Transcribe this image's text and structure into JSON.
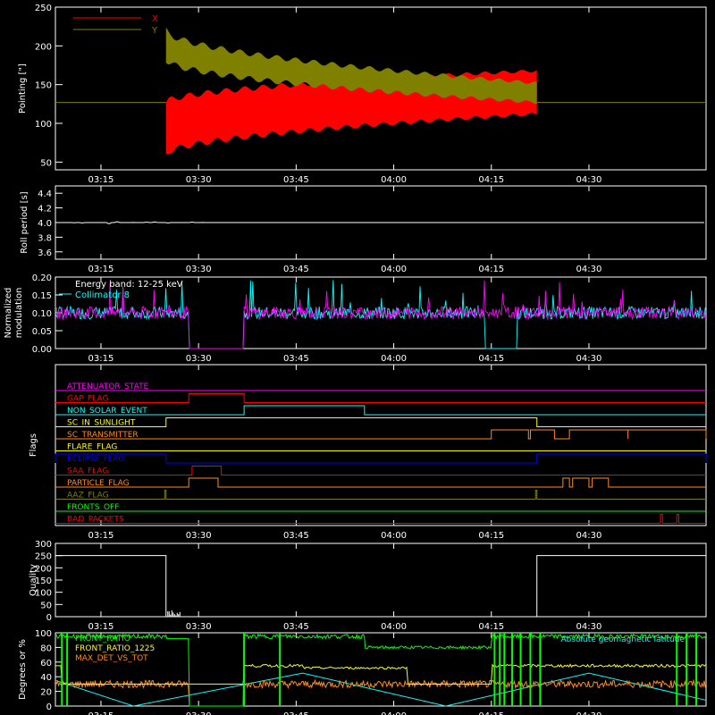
{
  "colors": {
    "axis": "#ffffff",
    "x_series": "#ff0000",
    "y_series": "#808000",
    "magenta": "#ff00ff",
    "cyan": "#00ffff",
    "yellow": "#ffff00",
    "orange": "#ff8c1a",
    "blue": "#0000ff",
    "red": "#ff0000",
    "green": "#00ff00",
    "olive": "#808000"
  },
  "time_axis": {
    "start_minutes": 188,
    "end_minutes": 288,
    "ticks": [
      "03:15",
      "03:30",
      "03:45",
      "04:00",
      "04:15",
      "04:30"
    ],
    "tick_minutes": [
      195,
      210,
      225,
      240,
      255,
      270
    ]
  },
  "chart_data": [
    {
      "type": "area",
      "name": "pointing",
      "ylabel": "Pointing [\"]",
      "ylim": [
        40,
        250
      ],
      "yticks": [
        "50",
        "100",
        "150",
        "200",
        "250"
      ],
      "ytick_values": [
        50,
        100,
        150,
        200,
        250
      ],
      "legend": [
        {
          "label": "X",
          "color": "#ff0000"
        },
        {
          "label": "Y",
          "color": "#808000"
        }
      ],
      "baseline": 127,
      "active_range": [
        205,
        262
      ],
      "series": [
        {
          "name": "X",
          "envelope_start": [
            60,
            127
          ],
          "envelope_end": [
            112,
            168
          ]
        },
        {
          "name": "Y",
          "envelope_start": [
            182,
            220
          ],
          "envelope_end": [
            127,
            152
          ]
        }
      ]
    },
    {
      "type": "line",
      "name": "roll-period",
      "ylabel": "Roll period [s]",
      "ylim": [
        3.5,
        4.5
      ],
      "yticks": [
        "3.6",
        "3.8",
        "4.0",
        "4.2",
        "4.4"
      ],
      "ytick_values": [
        3.6,
        3.8,
        4.0,
        4.2,
        4.4
      ],
      "value": 4.0
    },
    {
      "type": "line",
      "name": "modulation",
      "ylabel": "Normalized modulation",
      "ylim": [
        0,
        0.2
      ],
      "yticks": [
        "0.00",
        "0.05",
        "0.10",
        "0.15",
        "0.20"
      ],
      "ytick_values": [
        0,
        0.05,
        0.1,
        0.15,
        0.2
      ],
      "annotations": [
        "Energy band: 12-25 keV",
        "Collimator 8"
      ],
      "mean": 0.1,
      "gaps": [
        [
          208.5,
          217
        ]
      ],
      "cyan_gaps": [
        [
          254,
          259
        ]
      ]
    },
    {
      "type": "line",
      "name": "flags",
      "ylabel": "Flags",
      "flags": [
        {
          "label": "ATTENUATOR_STATE",
          "color": "#ff00ff",
          "on": []
        },
        {
          "label": "GAP_FLAG",
          "color": "#ff0000",
          "on": [
            [
              208.5,
              217
            ]
          ]
        },
        {
          "label": "NON_SOLAR_EVENT",
          "color": "#00ffff",
          "on": [
            [
              217,
              235.5
            ]
          ]
        },
        {
          "label": "SC_IN_SUNLIGHT",
          "color": "#ffff00",
          "on": [
            [
              205,
              262
            ]
          ]
        },
        {
          "label": "SC_TRANSMITTER",
          "color": "#ff8c1a",
          "on": [
            [
              255,
              260.7
            ],
            [
              261,
              264.7
            ],
            [
              267,
              276
            ],
            [
              276,
              288
            ]
          ]
        },
        {
          "label": "FLARE_FLAG",
          "color": "#ffff00",
          "on": []
        },
        {
          "label": "ECLIPSE_FLAG",
          "color": "#0000ff",
          "on": [
            [
              188,
              205
            ],
            [
              262,
              288
            ]
          ]
        },
        {
          "label": "SAA_FLAG",
          "color": "#ff0000",
          "on": [
            [
              209,
              213.5
            ]
          ]
        },
        {
          "label": "PARTICLE_FLAG",
          "color": "#ff8c1a",
          "on": [
            [
              208.5,
              213
            ],
            [
              266,
              267
            ],
            [
              267.5,
              270
            ],
            [
              270.5,
              273
            ]
          ]
        },
        {
          "label": "AAZ_FLAG",
          "color": "#808000",
          "on": [
            [
              204.8,
              205
            ],
            [
              261.8,
              262
            ]
          ]
        },
        {
          "label": "FRONTS_OFF",
          "color": "#00ff00",
          "on": []
        },
        {
          "label": "BAD_PACKETS",
          "color": "#ff0000",
          "on": [
            [
              281,
              281.3
            ],
            [
              283.5,
              283.8
            ]
          ]
        }
      ]
    },
    {
      "type": "line",
      "name": "quality",
      "ylabel": "Quality",
      "ylim": [
        0,
        300
      ],
      "yticks": [
        "0",
        "50",
        "100",
        "150",
        "200",
        "250",
        "300"
      ],
      "ytick_values": [
        0,
        50,
        100,
        150,
        200,
        250,
        300
      ],
      "segments": [
        [
          188,
          205,
          250
        ],
        [
          262,
          288,
          250
        ]
      ]
    },
    {
      "type": "line",
      "name": "degrees",
      "ylabel": "Degrees or %",
      "ylim": [
        0,
        100
      ],
      "yticks": [
        "0",
        "20",
        "40",
        "60",
        "80",
        "100"
      ],
      "ytick_values": [
        0,
        20,
        40,
        60,
        80,
        100
      ],
      "legend": [
        {
          "label": "FRONT_RATIO",
          "color": "#00ff00"
        },
        {
          "label": "FRONT_RATIO_1225",
          "color": "#ffff00"
        },
        {
          "label": "MAX_DET_VS_TOT",
          "color": "#ff8c1a"
        },
        {
          "label": "Absolute geomagnetic latitude",
          "color": "#00ffff"
        }
      ]
    }
  ]
}
